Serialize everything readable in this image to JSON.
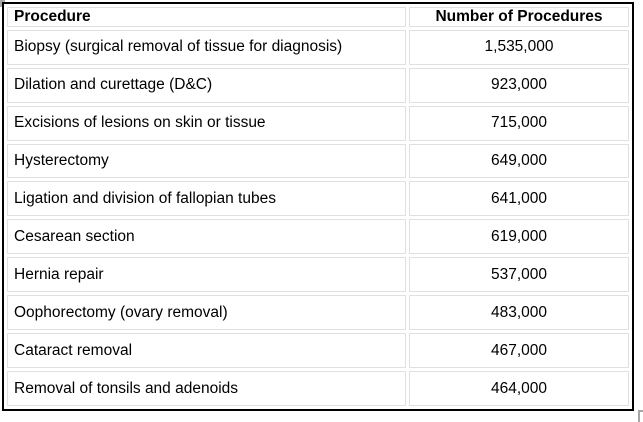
{
  "colors": {
    "background": "#ffffff",
    "outer_border": "#000000",
    "cell_border": "#e0e0e0",
    "text": "#000000",
    "corner_mark": "#a6a6a6"
  },
  "table": {
    "header": {
      "procedure": "Procedure",
      "count": "Number of Procedures"
    },
    "rows": [
      {
        "procedure": "Biopsy (surgical removal of tissue for diagnosis)",
        "count": "1,535,000"
      },
      {
        "procedure": "Dilation and curettage (D&C)",
        "count": "923,000"
      },
      {
        "procedure": "Excisions of lesions on skin or tissue",
        "count": "715,000"
      },
      {
        "procedure": "Hysterectomy",
        "count": "649,000"
      },
      {
        "procedure": "Ligation and division of fallopian tubes",
        "count": "641,000"
      },
      {
        "procedure": "Cesarean section",
        "count": "619,000"
      },
      {
        "procedure": "Hernia repair",
        "count": "537,000"
      },
      {
        "procedure": "Oophorectomy (ovary removal)",
        "count": "483,000"
      },
      {
        "procedure": "Cataract removal",
        "count": "467,000"
      },
      {
        "procedure": "Removal of tonsils and adenoids",
        "count": "464,000"
      }
    ]
  },
  "chart_data": {
    "type": "table",
    "title": "",
    "columns": [
      "Procedure",
      "Number of Procedures"
    ],
    "categories": [
      "Biopsy (surgical removal of tissue for diagnosis)",
      "Dilation and curettage (D&C)",
      "Excisions of lesions on skin or tissue",
      "Hysterectomy",
      "Ligation and division of fallopian tubes",
      "Cesarean section",
      "Hernia repair",
      "Oophorectomy (ovary removal)",
      "Cataract removal",
      "Removal of tonsils and adenoids"
    ],
    "values": [
      1535000,
      923000,
      715000,
      649000,
      641000,
      619000,
      537000,
      483000,
      467000,
      464000
    ]
  }
}
